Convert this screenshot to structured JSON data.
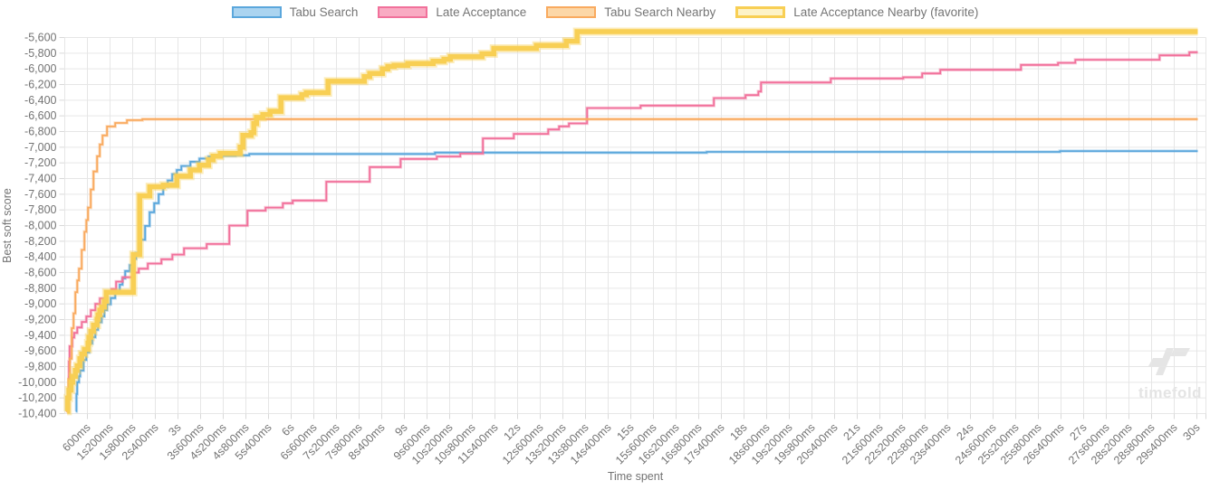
{
  "chart_data": {
    "type": "line",
    "variant": "step-after",
    "title": "",
    "xlabel": "Time spent",
    "ylabel": "Best soft score",
    "legend_position": "top",
    "grid": true,
    "grid_color": "#e6e6e6",
    "tick_color": "#d9d9d9",
    "text_color": "#737373",
    "x_axis": {
      "unit": "ms",
      "min": 0,
      "max": 30600,
      "tick_step": 600,
      "tick_labels": [
        "600ms",
        "1s200ms",
        "1s800ms",
        "2s400ms",
        "3s",
        "3s600ms",
        "4s200ms",
        "4s800ms",
        "5s400ms",
        "6s",
        "6s600ms",
        "7s200ms",
        "7s800ms",
        "8s400ms",
        "9s",
        "9s600ms",
        "10s200ms",
        "10s800ms",
        "11s400ms",
        "12s",
        "12s600ms",
        "13s200ms",
        "13s800ms",
        "14s400ms",
        "15s",
        "15s600ms",
        "16s200ms",
        "16s800ms",
        "17s400ms",
        "18s",
        "18s600ms",
        "19s200ms",
        "19s800ms",
        "20s400ms",
        "21s",
        "21s600ms",
        "22s200ms",
        "22s800ms",
        "23s400ms",
        "24s",
        "24s600ms",
        "25s200ms",
        "25s800ms",
        "26s400ms",
        "27s",
        "27s600ms",
        "28s200ms",
        "28s800ms",
        "29s400ms",
        "30s"
      ]
    },
    "y_axis": {
      "min": -10400,
      "max": -5600,
      "step": 200,
      "tick_labels": [
        "-5,600",
        "-5,800",
        "-6,000",
        "-6,200",
        "-6,400",
        "-6,600",
        "-6,800",
        "-7,000",
        "-7,200",
        "-7,400",
        "-7,600",
        "-7,800",
        "-8,000",
        "-8,200",
        "-8,400",
        "-8,600",
        "-8,800",
        "-9,000",
        "-9,200",
        "-9,400",
        "-9,600",
        "-9,800",
        "-10,000",
        "-10,200",
        "-10,400"
      ]
    },
    "series": [
      {
        "name": "Tabu Search",
        "color": "#5ba7dc",
        "swatch_fill": "#abd4f0",
        "line_width": 1.8,
        "favorite": false,
        "points": [
          [
            290,
            -10370
          ],
          [
            310,
            -10150
          ],
          [
            329,
            -10000
          ],
          [
            377,
            -9925
          ],
          [
            408,
            -9850
          ],
          [
            497,
            -9715
          ],
          [
            569,
            -9620
          ],
          [
            648,
            -9505
          ],
          [
            730,
            -9425
          ],
          [
            809,
            -9330
          ],
          [
            881,
            -9235
          ],
          [
            977,
            -9160
          ],
          [
            1049,
            -9080
          ],
          [
            1121,
            -9005
          ],
          [
            1217,
            -8925
          ],
          [
            1337,
            -8830
          ],
          [
            1457,
            -8755
          ],
          [
            1529,
            -8675
          ],
          [
            1601,
            -8580
          ],
          [
            1721,
            -8505
          ],
          [
            1817,
            -8425
          ],
          [
            1889,
            -8350
          ],
          [
            2009,
            -8180
          ],
          [
            2129,
            -8005
          ],
          [
            2249,
            -7830
          ],
          [
            2369,
            -7715
          ],
          [
            2489,
            -7600
          ],
          [
            2609,
            -7505
          ],
          [
            2729,
            -7425
          ],
          [
            2849,
            -7345
          ],
          [
            2969,
            -7290
          ],
          [
            3089,
            -7240
          ],
          [
            3329,
            -7185
          ],
          [
            3569,
            -7145
          ],
          [
            3809,
            -7120
          ],
          [
            4169,
            -7110
          ],
          [
            4529,
            -7104
          ],
          [
            4889,
            -7086
          ],
          [
            9810,
            -7069
          ],
          [
            17010,
            -7060
          ],
          [
            26370,
            -7049
          ]
        ]
      },
      {
        "name": "Late Acceptance",
        "color": "#f1719b",
        "swatch_fill": "#f9abc3",
        "line_width": 1.8,
        "favorite": false,
        "points": [
          [
            100,
            -10370
          ],
          [
            108,
            -9930
          ],
          [
            110,
            -9735
          ],
          [
            130,
            -9540
          ],
          [
            200,
            -9430
          ],
          [
            250,
            -9370
          ],
          [
            330,
            -9300
          ],
          [
            450,
            -9230
          ],
          [
            570,
            -9160
          ],
          [
            690,
            -9080
          ],
          [
            810,
            -9000
          ],
          [
            930,
            -8930
          ],
          [
            1100,
            -8850
          ],
          [
            1240,
            -8810
          ],
          [
            1360,
            -8715
          ],
          [
            1530,
            -8660
          ],
          [
            1800,
            -8600
          ],
          [
            1960,
            -8550
          ],
          [
            2200,
            -8485
          ],
          [
            2560,
            -8430
          ],
          [
            2850,
            -8370
          ],
          [
            3160,
            -8290
          ],
          [
            3760,
            -8235
          ],
          [
            4360,
            -8000
          ],
          [
            4840,
            -7810
          ],
          [
            5320,
            -7770
          ],
          [
            5780,
            -7715
          ],
          [
            6040,
            -7680
          ],
          [
            6930,
            -7440
          ],
          [
            8080,
            -7254
          ],
          [
            8900,
            -7150
          ],
          [
            9860,
            -7119
          ],
          [
            10480,
            -7081
          ],
          [
            11080,
            -6888
          ],
          [
            11900,
            -6830
          ],
          [
            12810,
            -6773
          ],
          [
            13100,
            -6734
          ],
          [
            13360,
            -6696
          ],
          [
            13840,
            -6500
          ],
          [
            15260,
            -6469
          ],
          [
            17200,
            -6373
          ],
          [
            18040,
            -6335
          ],
          [
            18380,
            -6289
          ],
          [
            18450,
            -6173
          ],
          [
            20300,
            -6123
          ],
          [
            22220,
            -6108
          ],
          [
            22720,
            -6058
          ],
          [
            23200,
            -6012
          ],
          [
            25340,
            -5950
          ],
          [
            26320,
            -5923
          ],
          [
            26780,
            -5884
          ],
          [
            29010,
            -5827
          ],
          [
            29800,
            -5788
          ]
        ]
      },
      {
        "name": "Tabu Search Nearby",
        "color": "#f9aa5f",
        "swatch_fill": "#fcd7a7",
        "line_width": 1.8,
        "favorite": false,
        "points": [
          [
            30,
            -10370
          ],
          [
            65,
            -10230
          ],
          [
            100,
            -9960
          ],
          [
            137,
            -9700
          ],
          [
            185,
            -9310
          ],
          [
            233,
            -9120
          ],
          [
            281,
            -8850
          ],
          [
            330,
            -8700
          ],
          [
            377,
            -8550
          ],
          [
            449,
            -8310
          ],
          [
            521,
            -8080
          ],
          [
            570,
            -7930
          ],
          [
            617,
            -7770
          ],
          [
            689,
            -7540
          ],
          [
            761,
            -7310
          ],
          [
            857,
            -7115
          ],
          [
            929,
            -6965
          ],
          [
            1001,
            -6850
          ],
          [
            1121,
            -6735
          ],
          [
            1337,
            -6690
          ],
          [
            1649,
            -6655
          ],
          [
            2057,
            -6642
          ]
        ]
      },
      {
        "name": "Late Acceptance Nearby (favorite)",
        "color": "#f8cf54",
        "swatch_fill": "#fdf3c8",
        "line_width": 5.5,
        "favorite": true,
        "points": [
          [
            65,
            -10370
          ],
          [
            80,
            -10200
          ],
          [
            110,
            -10100
          ],
          [
            168,
            -10000
          ],
          [
            209,
            -9925
          ],
          [
            281,
            -9850
          ],
          [
            329,
            -9790
          ],
          [
            401,
            -9700
          ],
          [
            449,
            -9640
          ],
          [
            521,
            -9580
          ],
          [
            617,
            -9500
          ],
          [
            641,
            -9425
          ],
          [
            689,
            -9350
          ],
          [
            761,
            -9270
          ],
          [
            857,
            -9195
          ],
          [
            881,
            -9140
          ],
          [
            929,
            -9080
          ],
          [
            977,
            -9040
          ],
          [
            1049,
            -8965
          ],
          [
            1100,
            -8850
          ],
          [
            1817,
            -8370
          ],
          [
            1985,
            -7620
          ],
          [
            2250,
            -7505
          ],
          [
            2609,
            -7485
          ],
          [
            2969,
            -7370
          ],
          [
            3329,
            -7290
          ],
          [
            3569,
            -7230
          ],
          [
            3809,
            -7160
          ],
          [
            3929,
            -7115
          ],
          [
            4121,
            -7080
          ],
          [
            4649,
            -7000
          ],
          [
            4721,
            -6850
          ],
          [
            4937,
            -6815
          ],
          [
            5009,
            -6700
          ],
          [
            5081,
            -6620
          ],
          [
            5249,
            -6584
          ],
          [
            5441,
            -6542
          ],
          [
            5729,
            -6368
          ],
          [
            6281,
            -6330
          ],
          [
            6401,
            -6304
          ],
          [
            6977,
            -6158
          ],
          [
            7937,
            -6100
          ],
          [
            8081,
            -6058
          ],
          [
            8417,
            -6000
          ],
          [
            8561,
            -5969
          ],
          [
            8729,
            -5954
          ],
          [
            9089,
            -5931
          ],
          [
            9761,
            -5904
          ],
          [
            10049,
            -5877
          ],
          [
            10217,
            -5846
          ],
          [
            11057,
            -5808
          ],
          [
            11369,
            -5738
          ],
          [
            12497,
            -5700
          ],
          [
            13289,
            -5646
          ],
          [
            13577,
            -5525
          ]
        ]
      }
    ],
    "watermark": {
      "text": "timefold"
    }
  }
}
